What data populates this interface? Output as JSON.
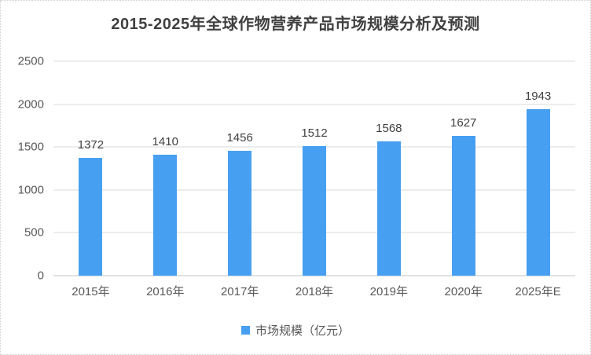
{
  "chart": {
    "colors": {
      "bar": "#479FF1",
      "gridline": "#D9D9D9",
      "axis_text": "#595959",
      "value_label_text": "#404040",
      "title_text": "#404040",
      "frame_border": "#CFCFCF"
    }
  },
  "chart_data": {
    "type": "bar",
    "title": "2015-2025年全球作物营养产品市场规模分析及预测",
    "categories": [
      "2015年",
      "2016年",
      "2017年",
      "2018年",
      "2019年",
      "2020年",
      "2025年E"
    ],
    "values": [
      1372,
      1410,
      1456,
      1512,
      1568,
      1627,
      1943
    ],
    "series_name": "市场规模（亿元）",
    "xlabel": "",
    "ylabel": "",
    "ylim": [
      0,
      2500
    ],
    "yticks": [
      0,
      500,
      1000,
      1500,
      2000,
      2500
    ],
    "legend": [
      "市场规模（亿元）"
    ],
    "legend_position": "bottom",
    "grid": true,
    "data_labels": true
  }
}
